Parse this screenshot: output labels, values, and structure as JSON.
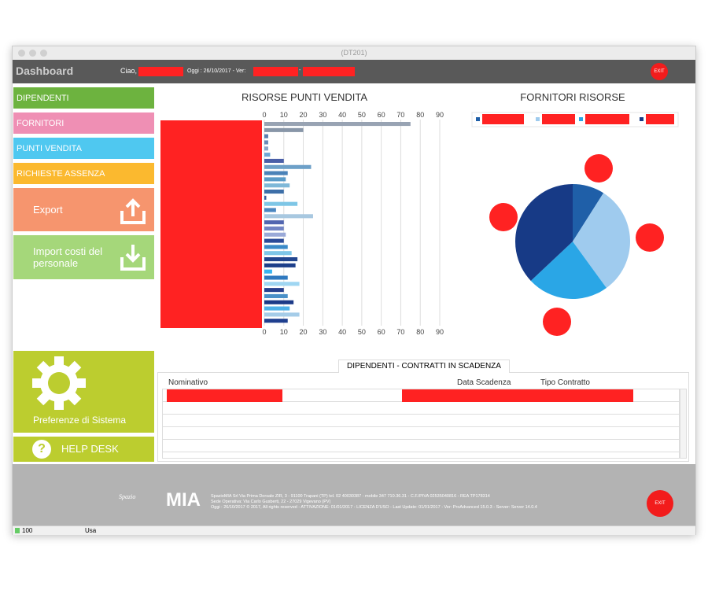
{
  "window": {
    "title": "(DT201)"
  },
  "header": {
    "title": "Dashboard",
    "greeting": "Ciao,",
    "date": "Oggi :  26/10/2017 - Ver:",
    "separator": "-",
    "exit": "EXIT"
  },
  "menu": {
    "items": [
      "DIPENDENTI",
      "FORNITORI",
      "PUNTI VENDITA",
      "RICHIESTE ASSENZA"
    ],
    "export": "Export",
    "import": "Import costi del personale",
    "preferences": "Preferenze di Sistema",
    "helpdesk": "HELP DESK"
  },
  "chart_data": [
    {
      "type": "bar",
      "orientation": "horizontal",
      "title": "RISORSE PUNTI VENDITA",
      "categories": [
        null,
        null,
        null,
        null,
        null,
        null,
        null,
        null,
        null,
        null,
        null,
        null,
        null,
        null,
        null,
        null,
        null,
        null,
        null,
        null,
        null,
        null,
        null,
        null,
        null,
        null,
        null,
        null,
        null,
        null,
        null,
        null,
        null
      ],
      "values": [
        75,
        20,
        2,
        2,
        2,
        3,
        10,
        24,
        12,
        11,
        13,
        10,
        1,
        17,
        6,
        25,
        10,
        10,
        11,
        10,
        12,
        14,
        17,
        16,
        4,
        12,
        18,
        10,
        12,
        15,
        13,
        18,
        12
      ],
      "colors": [
        "#98a3b3",
        "#8896a8",
        "#5b7fb0",
        "#6a8ab6",
        "#8aa5c8",
        "#6fa8d6",
        "#4a5fa8",
        "#6da0c8",
        "#4a82b8",
        "#5a9bc8",
        "#7fb8d8",
        "#3d6fa8",
        "#3b5fa0",
        "#7ec6e6",
        "#4a86c0",
        "#a8c8e0",
        "#5266b0",
        "#7284c4",
        "#9aa9d8",
        "#2a4a98",
        "#3a8ac8",
        "#7ec6e8",
        "#22468f",
        "#1d3f8a",
        "#39b3ef",
        "#2f79bf",
        "#9fd6f2",
        "#26408e",
        "#4a90c8",
        "#1c3a88",
        "#4fb0e8",
        "#a5cce8",
        "#1f3f8f"
      ],
      "xlim": [
        0,
        90
      ],
      "xticks": [
        0,
        10,
        20,
        30,
        40,
        50,
        60,
        70,
        80,
        90
      ],
      "grid": true
    },
    {
      "type": "pie",
      "title": "FORNITORI RISORSE",
      "series": [
        {
          "name": null,
          "color": "#1f5fa8",
          "values": [
            9
          ]
        },
        {
          "name": null,
          "color": "#9fcbee",
          "values": [
            31
          ]
        },
        {
          "name": null,
          "color": "#2aa6e6",
          "values": [
            23
          ]
        },
        {
          "name": null,
          "color": "#173a86",
          "values": [
            37
          ]
        }
      ]
    }
  ],
  "table": {
    "title": "DIPENDENTI - CONTRATTI IN SCADENZA",
    "columns": [
      "Nominativo",
      "Data Scadenza",
      "Tipo Contratto"
    ]
  },
  "footer": {
    "logo_small": "Spazio",
    "logo": "MIA",
    "lines": [
      "SpazioMIA Srl  Via Prima Dorsale ZIR, 3 - 91100 Trapani (TP) tel. 02 40030387  - mobile 347 710.36.31 - C.F./PIVA 02535040816 - REA TP178314",
      "Sede Operativa: Via Carlo Gusberti, 22 - 27029 Vigevano (PV)",
      "Oggi :  26/10/2017  © 2017, All rights reserved  - ATTIVAZIONE: 01/01/2017 - LICENZA D'USO  -  Last Update: 01/01/2017 - Ver: ProAdvanced 15.0.3 - Server: Server 14.0.4"
    ],
    "exit": "EXIT"
  },
  "status": {
    "zoom": "100",
    "locale": "Usa"
  }
}
